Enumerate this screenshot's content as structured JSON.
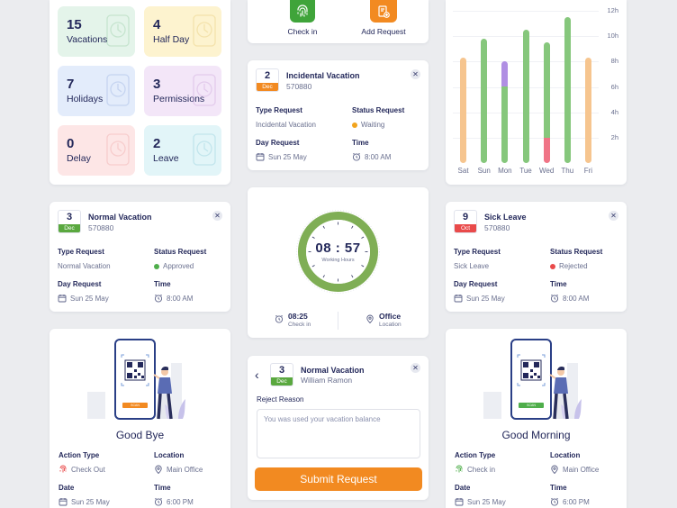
{
  "stats": [
    {
      "value": "15",
      "label": "Vacations",
      "bg": "#e4f4ea",
      "deco": "#8ec79c",
      "icon": "plant-icon"
    },
    {
      "value": "4",
      "label": "Half Day",
      "bg": "#fdf3cf",
      "deco": "#e3c36a",
      "icon": "clock-icon"
    },
    {
      "value": "7",
      "label": "Holidays",
      "bg": "#e3ecfb",
      "deco": "#8fa9de",
      "icon": "calendar-icon"
    },
    {
      "value": "3",
      "label": "Permissions",
      "bg": "#f3e6f8",
      "deco": "#c69ad6",
      "icon": "hand-icon"
    },
    {
      "value": "0",
      "label": "Delay",
      "bg": "#fde6e6",
      "deco": "#ec9e9e",
      "icon": "alarm-icon"
    },
    {
      "value": "2",
      "label": "Leave",
      "bg": "#e2f5f8",
      "deco": "#85c8d6",
      "icon": "door-icon"
    }
  ],
  "actions": {
    "checkin_label": "Check in",
    "add_request_label": "Add Request"
  },
  "incidental": {
    "day": "2",
    "month": "Dec",
    "month_color": "#f28a21",
    "title": "Incidental Vacation",
    "code": "570880",
    "type_label": "Type Request",
    "type_value": "Incidental Vacation",
    "status_label": "Status Request",
    "status_value": "Waiting",
    "status_color": "#f2a41e",
    "day_label": "Day Request",
    "day_value": "Sun 25 May",
    "time_label": "Time",
    "time_value": "8:00 AM"
  },
  "normal": {
    "day": "3",
    "month": "Dec",
    "month_color": "#5aa83f",
    "title": "Normal Vacation",
    "code": "570880",
    "type_label": "Type Request",
    "type_value": "Normal Vacation",
    "status_label": "Status Request",
    "status_value": "Approved",
    "status_color": "#4fae4b",
    "day_label": "Day Request",
    "day_value": "Sun 25 May",
    "time_label": "Time",
    "time_value": "8:00 AM"
  },
  "sick": {
    "day": "9",
    "month": "Oct",
    "month_color": "#e94a4a",
    "title": "Sick Leave",
    "code": "570880",
    "type_label": "Type Request",
    "type_value": "Sick Leave",
    "status_label": "Status Request",
    "status_value": "Rejected",
    "status_color": "#e94a4a",
    "day_label": "Day Request",
    "day_value": "Sun 25 May",
    "time_label": "Time",
    "time_value": "8:00 AM"
  },
  "clock": {
    "time": "08 : 57",
    "subtitle": "Working Hours",
    "ring_color": "#7fae55",
    "checkin_time": "08:25",
    "checkin_label": "Check in",
    "location_value": "Office",
    "location_label": "Location"
  },
  "reject": {
    "day": "3",
    "month": "Dec",
    "month_color": "#5aa83f",
    "title": "Normal Vacation",
    "name": "William Ramon",
    "reason_label": "Reject Reason",
    "reason_text": "You was used your vacation balance",
    "submit_label": "Submit Request"
  },
  "goodbye": {
    "title": "Good Bye",
    "scan_button": "SCAN",
    "scan_color": "#f28a21",
    "action_label": "Action Type",
    "action_value": "Check Out",
    "action_color": "#e94a4a",
    "location_label": "Location",
    "location_value": "Main Office",
    "date_label": "Date",
    "date_value": "Sun 25 May",
    "time_label": "Time",
    "time_value": "6:00 PM"
  },
  "goodmorning": {
    "title": "Good Morning",
    "scan_button": "SCAN",
    "scan_color": "#4fae4b",
    "action_label": "Action Type",
    "action_value": "Check in",
    "action_color": "#4fae4b",
    "location_label": "Location",
    "location_value": "Main Office",
    "date_label": "Date",
    "date_value": "Sun 25 May",
    "time_label": "Time",
    "time_value": "6:00 PM"
  },
  "chart_data": {
    "type": "bar",
    "categories": [
      "Sat",
      "Sun",
      "Mon",
      "Tue",
      "Wed",
      "Thu",
      "Fri"
    ],
    "yticks": [
      "2h",
      "4h",
      "6h",
      "8h",
      "10h",
      "12h"
    ],
    "ylim": [
      0,
      12
    ],
    "series": [
      {
        "values": [
          0,
          0,
          0,
          0,
          2,
          0,
          0
        ],
        "color": "#f07486"
      },
      {
        "values": [
          0,
          9.8,
          6,
          10.5,
          7.5,
          11.5,
          0
        ],
        "color": "#86c77c"
      },
      {
        "values": [
          0,
          0,
          2,
          0,
          0,
          0,
          0
        ],
        "color": "#b08fe3"
      },
      {
        "values": [
          8.3,
          0,
          0,
          0,
          0,
          0,
          8.3
        ],
        "color": "#f6c58f"
      }
    ]
  }
}
